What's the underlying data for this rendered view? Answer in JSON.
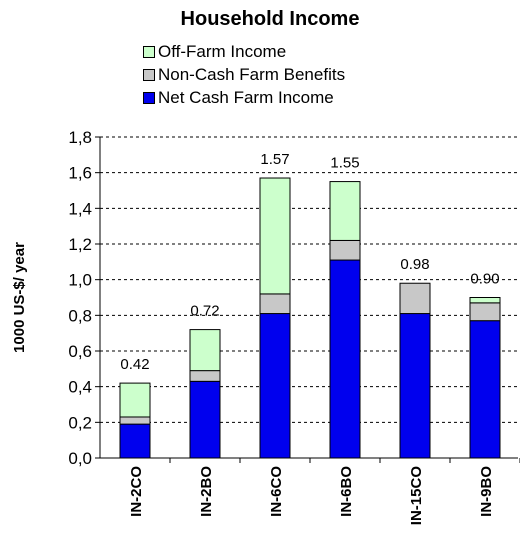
{
  "chart_data": {
    "type": "bar",
    "stacked": true,
    "title": "Household Income",
    "ylabel": "1000 US-$/ year",
    "xlabel": "",
    "ylim": [
      0,
      1.8
    ],
    "yticks": [
      "0,0",
      "0,2",
      "0,4",
      "0,6",
      "0,8",
      "1,0",
      "1,2",
      "1,4",
      "1,6",
      "1,8"
    ],
    "categories": [
      "IN-2CO",
      "IN-2BO",
      "IN-6CO",
      "IN-6BO",
      "IN-15CO",
      "IN-9BO"
    ],
    "series": [
      {
        "name": "Net Cash Farm Income",
        "color": "#0000ee",
        "values": [
          0.19,
          0.43,
          0.81,
          1.11,
          0.81,
          0.77
        ]
      },
      {
        "name": "Non-Cash Farm Benefits",
        "color": "#c8c8c8",
        "values": [
          0.04,
          0.06,
          0.11,
          0.11,
          0.17,
          0.1
        ]
      },
      {
        "name": "Off-Farm Income",
        "color": "#ccffcc",
        "values": [
          0.19,
          0.23,
          0.65,
          0.33,
          0.0,
          0.03
        ]
      }
    ],
    "totals": [
      "0.42",
      "0.72",
      "1.57",
      "1.55",
      "0.98",
      "0.90"
    ],
    "legend_order": [
      "Off-Farm Income",
      "Non-Cash Farm Benefits",
      "Net Cash Farm Income"
    ],
    "legend_position": "top",
    "grid": true
  }
}
